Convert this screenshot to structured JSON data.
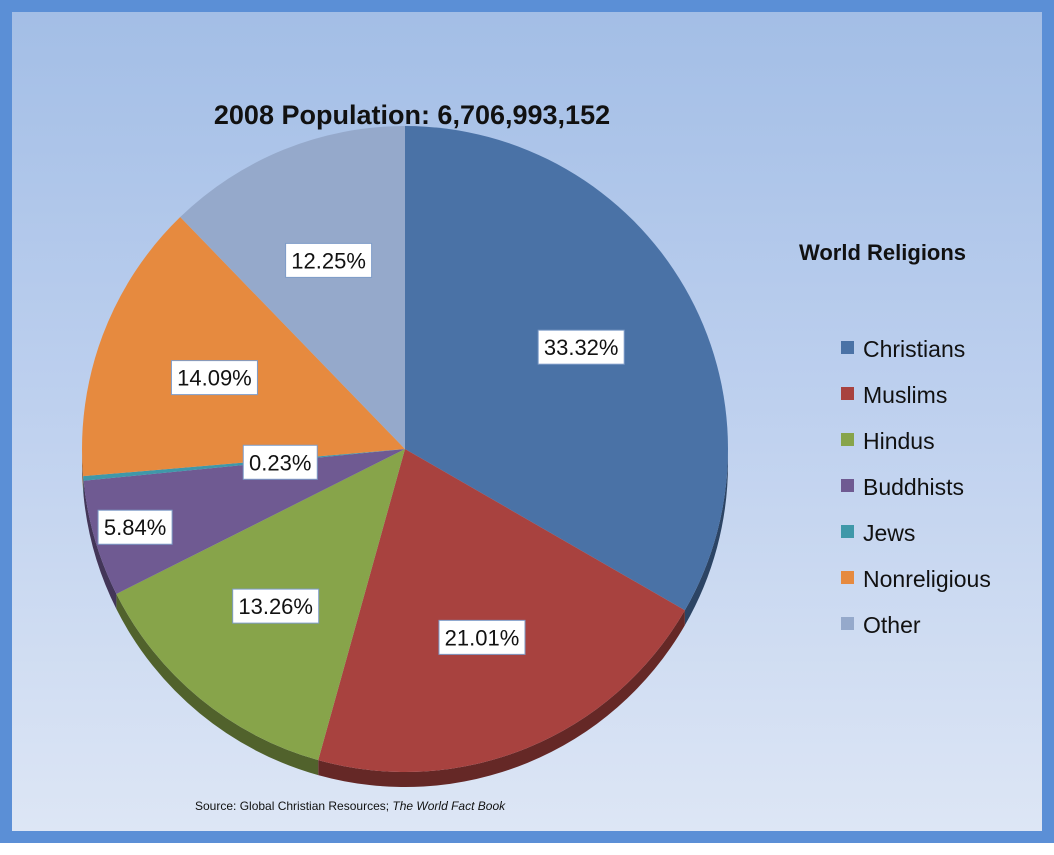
{
  "chart_data": {
    "type": "pie",
    "title": "2008 Population:  6,706,993,152",
    "legend_title": "World Religions",
    "legend_position": "right",
    "source_prefix": "Source:  Global Christian Resources; ",
    "source_italic": "The World Fact Book",
    "slices": [
      {
        "name": "Christians",
        "value": 33.32,
        "label": "33.32%",
        "color": "#4a72a6"
      },
      {
        "name": "Muslims",
        "value": 21.01,
        "label": "21.01%",
        "color": "#a8423f"
      },
      {
        "name": "Hindus",
        "value": 13.26,
        "label": "13.26%",
        "color": "#87a44a"
      },
      {
        "name": "Buddhists",
        "value": 5.84,
        "label": "5.84%",
        "color": "#6f5a92"
      },
      {
        "name": "Jews",
        "value": 0.23,
        "label": "0.23%",
        "color": "#3f98a9"
      },
      {
        "name": "Nonreligious",
        "value": 14.09,
        "label": "14.09%",
        "color": "#e68a3f"
      },
      {
        "name": "Other",
        "value": 12.25,
        "label": "12.25%",
        "color": "#95a9cb"
      }
    ]
  }
}
